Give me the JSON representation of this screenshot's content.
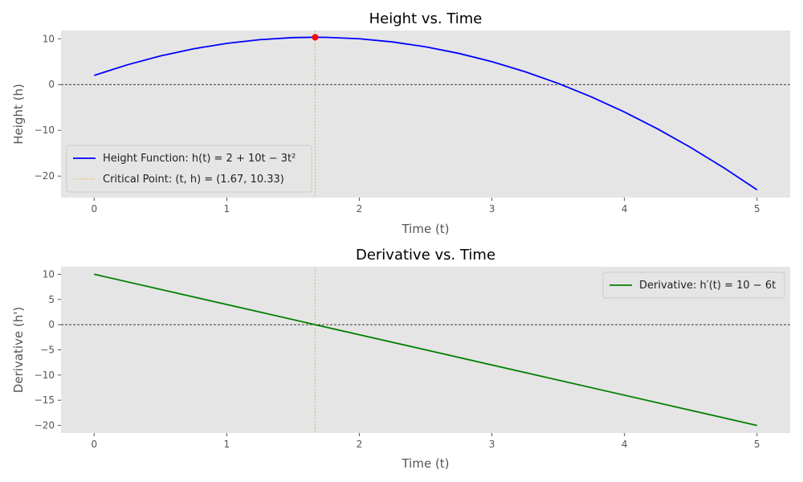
{
  "chart_data": [
    {
      "type": "line",
      "title": "Height vs. Time",
      "xlabel": "Time (t)",
      "ylabel": "Height (h)",
      "xlim": [
        -0.25,
        5.25
      ],
      "ylim": [
        -24.7,
        11.8
      ],
      "xticks": [
        0,
        1,
        2,
        3,
        4,
        5
      ],
      "yticks": [
        -20,
        -10,
        0,
        10
      ],
      "grid": false,
      "legend_position": "lower-left",
      "series": [
        {
          "name": "Height Function: h(t) = 2 + 10t − 3t²",
          "color": "#0000ff",
          "x": [
            0,
            0.25,
            0.5,
            0.75,
            1,
            1.25,
            1.5,
            1.667,
            1.75,
            2,
            2.25,
            2.5,
            2.75,
            3,
            3.25,
            3.5,
            3.75,
            4,
            4.25,
            4.5,
            4.75,
            5
          ],
          "y": [
            2,
            4.31,
            6.25,
            7.81,
            9,
            9.81,
            10.25,
            10.33,
            10.31,
            10,
            9.31,
            8.25,
            6.81,
            5,
            2.81,
            0.25,
            -2.69,
            -6,
            -9.69,
            -13.75,
            -18.19,
            -23
          ]
        }
      ],
      "critical_point": {
        "name": "Critical Point: (t, h) = (1.67, 10.33)",
        "x": 1.667,
        "y": 10.33,
        "line_color": "#ffa500",
        "marker_color": "#ff0000"
      },
      "zero_line": true
    },
    {
      "type": "line",
      "title": "Derivative vs. Time",
      "xlabel": "Time (t)",
      "ylabel": "Derivative (h')",
      "xlim": [
        -0.25,
        5.25
      ],
      "ylim": [
        -21.5,
        11.5
      ],
      "xticks": [
        0,
        1,
        2,
        3,
        4,
        5
      ],
      "yticks": [
        -20,
        -15,
        -10,
        -5,
        0,
        5,
        10
      ],
      "grid": false,
      "legend_position": "upper-right",
      "series": [
        {
          "name": "Derivative: h′(t) = 10 − 6t",
          "color": "#008000",
          "x": [
            0,
            5
          ],
          "y": [
            10,
            -20
          ]
        }
      ],
      "critical_line": {
        "x": 1.667,
        "line_color": "#ffa500"
      },
      "zero_line": true
    }
  ]
}
